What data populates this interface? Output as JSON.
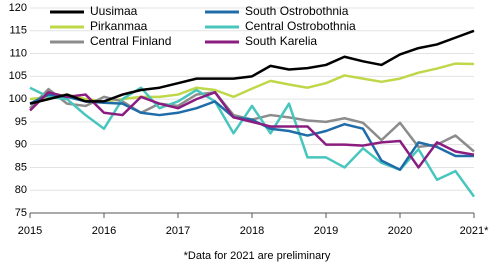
{
  "chart_data": {
    "type": "line",
    "note": "*Data for 2021 are preliminary",
    "categories": [
      "2015",
      null,
      null,
      null,
      "2016",
      null,
      null,
      null,
      "2017",
      null,
      null,
      null,
      "2018",
      null,
      null,
      null,
      "2019",
      null,
      null,
      null,
      "2020",
      null,
      null,
      null,
      "2021*"
    ],
    "series": [
      {
        "name": "Uusimaa",
        "color": "#000000",
        "values": [
          99,
          100,
          101,
          99.5,
          99.5,
          101,
          102,
          102.5,
          103.5,
          104.5,
          104.5,
          104.5,
          105,
          107.3,
          106.5,
          106.8,
          107.5,
          109.3,
          108.3,
          107.5,
          109.8,
          111.2,
          112,
          113.5,
          115
        ]
      },
      {
        "name": "South Ostrobothnia",
        "color": "#1f6ca8",
        "values": [
          99,
          101,
          100.5,
          99.5,
          99.2,
          99,
          97,
          96.5,
          97,
          98,
          99.5,
          96,
          95.5,
          93.5,
          93,
          92,
          93,
          94.5,
          93.5,
          86.5,
          84.5,
          90.5,
          89.5,
          87.5,
          87.5
        ]
      },
      {
        "name": "Pirkanmaa",
        "color": "#bfd84a",
        "values": [
          100,
          100.5,
          101,
          100,
          99.5,
          100,
          100.5,
          100.5,
          101,
          102.5,
          102,
          100.5,
          102.3,
          104,
          103.2,
          102.5,
          103.5,
          105.2,
          104.5,
          103.8,
          104.5,
          105.8,
          106.7,
          107.8,
          107.7
        ]
      },
      {
        "name": "Central Ostrobothnia",
        "color": "#48c6be",
        "values": [
          102.5,
          100.5,
          100,
          96.5,
          93.5,
          100,
          102.5,
          98,
          99.5,
          102,
          99.5,
          92.5,
          98.5,
          92.5,
          99,
          87.2,
          87.2,
          85,
          89.2,
          86,
          84.5,
          89,
          82.3,
          84.2,
          78.6
        ]
      },
      {
        "name": "Central Finland",
        "color": "#8c8c8c",
        "values": [
          98,
          102.2,
          99,
          98.5,
          100.5,
          99.5,
          97,
          99,
          98.5,
          101,
          101.5,
          96.5,
          95.5,
          96.5,
          96,
          95.3,
          95,
          95.8,
          94.8,
          91,
          94.8,
          89.5,
          90,
          92,
          88.5
        ]
      },
      {
        "name": "South Karelia",
        "color": "#8a1d7f",
        "values": [
          97.5,
          101.5,
          100.5,
          101,
          97,
          96.5,
          100.5,
          99,
          98,
          100,
          101.5,
          96,
          95,
          94,
          94,
          94,
          90,
          90,
          89.8,
          90.5,
          90.8,
          85,
          90.5,
          88.5,
          87.8
        ]
      }
    ],
    "ylim": [
      75,
      120
    ],
    "yticks": [
      75,
      80,
      85,
      90,
      95,
      100,
      105,
      110,
      115,
      120
    ],
    "grid": true
  }
}
